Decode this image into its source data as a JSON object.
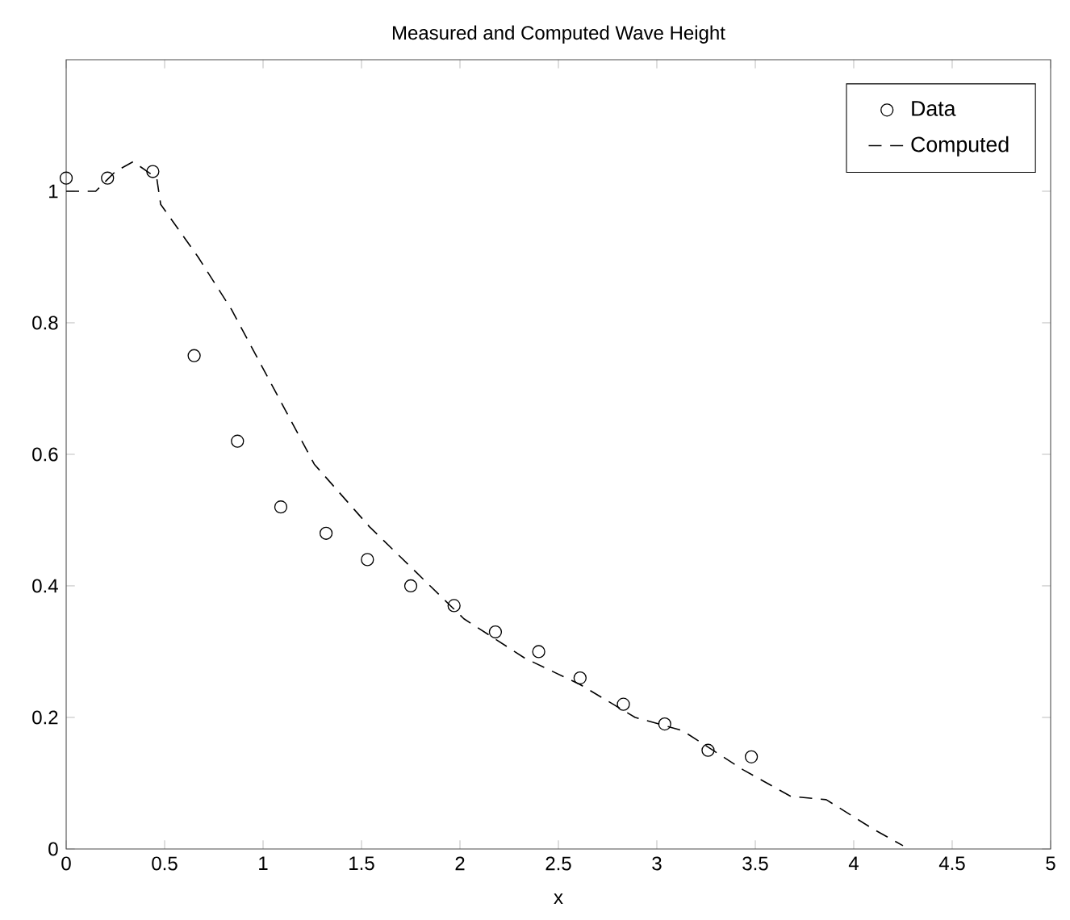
{
  "chart_data": {
    "type": "line",
    "title": "Measured and Computed Wave Height",
    "xlabel": "x",
    "xlim": [
      0,
      5
    ],
    "ylim": [
      0,
      1.2
    ],
    "xticks": [
      0,
      0.5,
      1,
      1.5,
      2,
      2.5,
      3,
      3.5,
      4,
      4.5,
      5
    ],
    "yticks": [
      0,
      0.2,
      0.4,
      0.6,
      0.8,
      1
    ],
    "legend": "top right",
    "series": [
      {
        "name": "Data",
        "type": "scatter",
        "marker": "circle",
        "color": "#000000",
        "x": [
          0,
          0.21,
          0.44,
          0.65,
          0.87,
          1.09,
          1.32,
          1.53,
          1.75,
          1.97,
          2.18,
          2.4,
          2.61,
          2.83,
          3.04,
          3.26,
          3.48
        ],
        "values": [
          1.02,
          1.02,
          1.03,
          0.75,
          0.62,
          0.52,
          0.48,
          0.44,
          0.4,
          0.37,
          0.33,
          0.3,
          0.26,
          0.22,
          0.19,
          0.15,
          0.14
        ]
      },
      {
        "name": "Computed",
        "line_style": "dashed",
        "color": "#000000",
        "x": [
          0,
          0.15,
          0.25,
          0.34,
          0.46,
          0.48,
          0.67,
          0.84,
          1.26,
          1.54,
          1.78,
          2.02,
          2.33,
          2.61,
          2.89,
          3.13,
          3.44,
          3.68,
          3.86,
          4.1,
          4.25
        ],
        "values": [
          1.0,
          1.0,
          1.03,
          1.045,
          1.02,
          0.98,
          0.9,
          0.82,
          0.585,
          0.49,
          0.42,
          0.35,
          0.29,
          0.25,
          0.2,
          0.18,
          0.12,
          0.08,
          0.075,
          0.03,
          0.005
        ]
      }
    ]
  }
}
